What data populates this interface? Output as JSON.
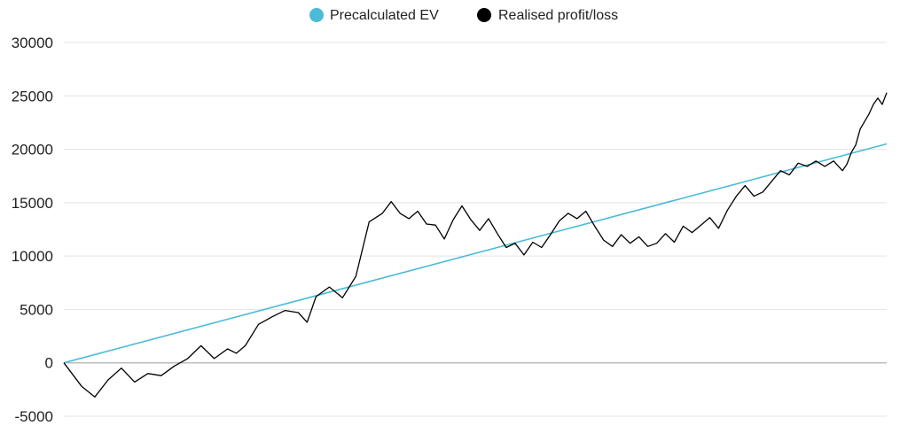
{
  "chart_data": {
    "type": "line",
    "title": "",
    "xlabel": "",
    "ylabel": "",
    "ylim": [
      -5000,
      30000
    ],
    "yticks": [
      30000,
      25000,
      20000,
      15000,
      10000,
      5000,
      0,
      -5000
    ],
    "ytick_labels": [
      "30000",
      "25000",
      "20000",
      "15000",
      "10000",
      "5000",
      "0",
      "-5000"
    ],
    "grid": true,
    "legend_position": "top-center",
    "x": [
      0,
      20,
      35,
      50,
      65,
      80,
      95,
      110,
      125,
      140,
      155,
      170,
      185,
      195,
      205,
      220,
      235,
      250,
      265,
      275,
      285,
      300,
      315,
      330,
      345,
      360,
      370,
      380,
      390,
      400,
      410,
      420,
      430,
      440,
      450,
      460,
      470,
      480,
      490,
      500,
      510,
      520,
      530,
      540,
      550,
      560,
      570,
      580,
      590,
      600,
      610,
      620,
      630,
      640,
      650,
      660,
      670,
      680,
      690,
      700,
      710,
      720,
      730,
      740,
      750,
      760,
      770,
      780,
      790,
      800,
      810,
      820,
      830,
      840,
      850,
      860,
      870,
      880,
      885,
      890,
      895,
      900,
      905,
      910,
      915,
      920,
      925,
      930
    ],
    "series": [
      {
        "name": "Precalculated EV",
        "color": "#4BBBD8",
        "values": [
          0,
          20500
        ],
        "x": [
          0,
          930
        ]
      },
      {
        "name": "Realised profit/loss",
        "color": "#000000",
        "values": [
          0,
          -2200,
          -3200,
          -1600,
          -500,
          -1800,
          -1000,
          -1200,
          -300,
          400,
          1600,
          400,
          1300,
          900,
          1600,
          3600,
          4300,
          4900,
          4700,
          3800,
          6200,
          7100,
          6100,
          8100,
          13200,
          14000,
          15100,
          14000,
          13500,
          14200,
          13000,
          12900,
          11600,
          13400,
          14700,
          13400,
          12400,
          13500,
          12100,
          10800,
          11200,
          10100,
          11300,
          10800,
          12000,
          13300,
          14000,
          13500,
          14200,
          12800,
          11500,
          10900,
          12000,
          11200,
          11800,
          10900,
          11200,
          12100,
          11300,
          12800,
          12200,
          12900,
          13600,
          12600,
          14300,
          15600,
          16600,
          15600,
          16000,
          17000,
          18000,
          17600,
          18700,
          18400,
          18900,
          18400,
          18900,
          18000,
          18600,
          19700,
          20400,
          21900,
          22600,
          23300,
          24200,
          24800,
          24200,
          25300
        ]
      }
    ]
  },
  "legend": [
    {
      "label": "Precalculated EV",
      "color": "#4BBBD8"
    },
    {
      "label": "Realised profit/loss",
      "color": "#000000"
    }
  ],
  "colors": {
    "grid": "#e3e3e3",
    "zero_axis": "#bdbdbd",
    "text": "#222222"
  }
}
